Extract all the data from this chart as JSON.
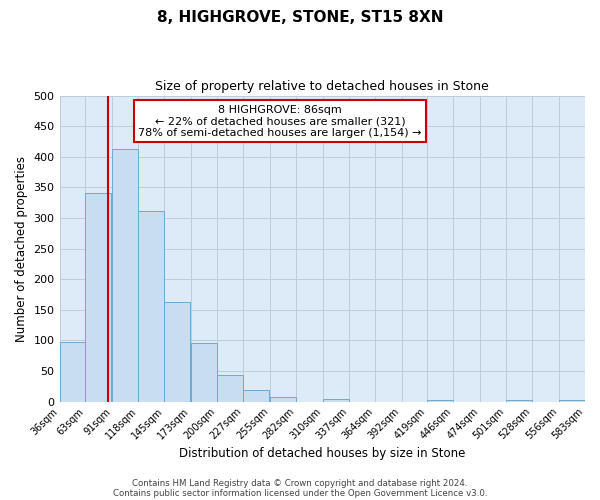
{
  "title": "8, HIGHGROVE, STONE, ST15 8XN",
  "subtitle": "Size of property relative to detached houses in Stone",
  "xlabel": "Distribution of detached houses by size in Stone",
  "ylabel": "Number of detached properties",
  "bar_color": "#c9ddf0",
  "bar_edge_color": "#6aaad4",
  "bg_color": "#ddeaf7",
  "grid_color": "#c0cdd8",
  "vline_color": "#cc0000",
  "vline_x": 86,
  "annotation_line1": "8 HIGHGROVE: 86sqm",
  "annotation_line2": "← 22% of detached houses are smaller (321)",
  "annotation_line3": "78% of semi-detached houses are larger (1,154) →",
  "bins": [
    36,
    63,
    91,
    118,
    145,
    173,
    200,
    227,
    255,
    282,
    310,
    337,
    364,
    392,
    419,
    446,
    474,
    501,
    528,
    556,
    583
  ],
  "bin_labels": [
    "36sqm",
    "63sqm",
    "91sqm",
    "118sqm",
    "145sqm",
    "173sqm",
    "200sqm",
    "227sqm",
    "255sqm",
    "282sqm",
    "310sqm",
    "337sqm",
    "364sqm",
    "392sqm",
    "419sqm",
    "446sqm",
    "474sqm",
    "501sqm",
    "528sqm",
    "556sqm",
    "583sqm"
  ],
  "counts": [
    97,
    341,
    413,
    311,
    163,
    95,
    43,
    19,
    7,
    0,
    4,
    0,
    0,
    0,
    2,
    0,
    0,
    3,
    0,
    2
  ],
  "ylim": [
    0,
    500
  ],
  "yticks": [
    0,
    50,
    100,
    150,
    200,
    250,
    300,
    350,
    400,
    450,
    500
  ],
  "footer1": "Contains HM Land Registry data © Crown copyright and database right 2024.",
  "footer2": "Contains public sector information licensed under the Open Government Licence v3.0."
}
